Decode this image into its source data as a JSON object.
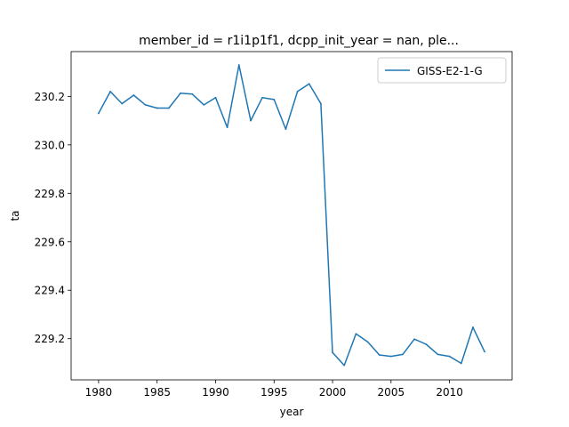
{
  "chart_data": {
    "type": "line",
    "title": "member_id = r1i1p1f1, dcpp_init_year = nan, ple...",
    "xlabel": "year",
    "ylabel": "ta",
    "xlim": [
      1977.65,
      2015.35
    ],
    "ylim": [
      229.03,
      230.385
    ],
    "xticks": [
      1980,
      1985,
      1990,
      1995,
      2000,
      2005,
      2010
    ],
    "yticks": [
      229.2,
      229.4,
      229.6,
      229.8,
      230.0,
      230.2
    ],
    "ytick_labels": [
      "229.2",
      "229.4",
      "229.6",
      "229.8",
      "230.0",
      "230.2"
    ],
    "grid": false,
    "legend_position": "top-right",
    "series": [
      {
        "name": "GISS-E2-1-G",
        "color": "#1f77b4",
        "x": [
          1980,
          1981,
          1982,
          1983,
          1984,
          1985,
          1986,
          1987,
          1988,
          1989,
          1990,
          1991,
          1992,
          1993,
          1994,
          1995,
          1996,
          1997,
          1998,
          1999,
          2000,
          2001,
          2002,
          2003,
          2004,
          2005,
          2006,
          2007,
          2008,
          2009,
          2010,
          2011,
          2012,
          2013
        ],
        "values": [
          230.13,
          230.22,
          230.17,
          230.205,
          230.165,
          230.152,
          230.152,
          230.213,
          230.21,
          230.165,
          230.195,
          230.072,
          230.33,
          230.1,
          230.195,
          230.187,
          230.065,
          230.22,
          230.252,
          230.17,
          229.143,
          229.09,
          229.22,
          229.187,
          229.133,
          229.127,
          229.135,
          229.198,
          229.177,
          229.135,
          229.127,
          229.098,
          229.247,
          229.146
        ]
      }
    ]
  }
}
